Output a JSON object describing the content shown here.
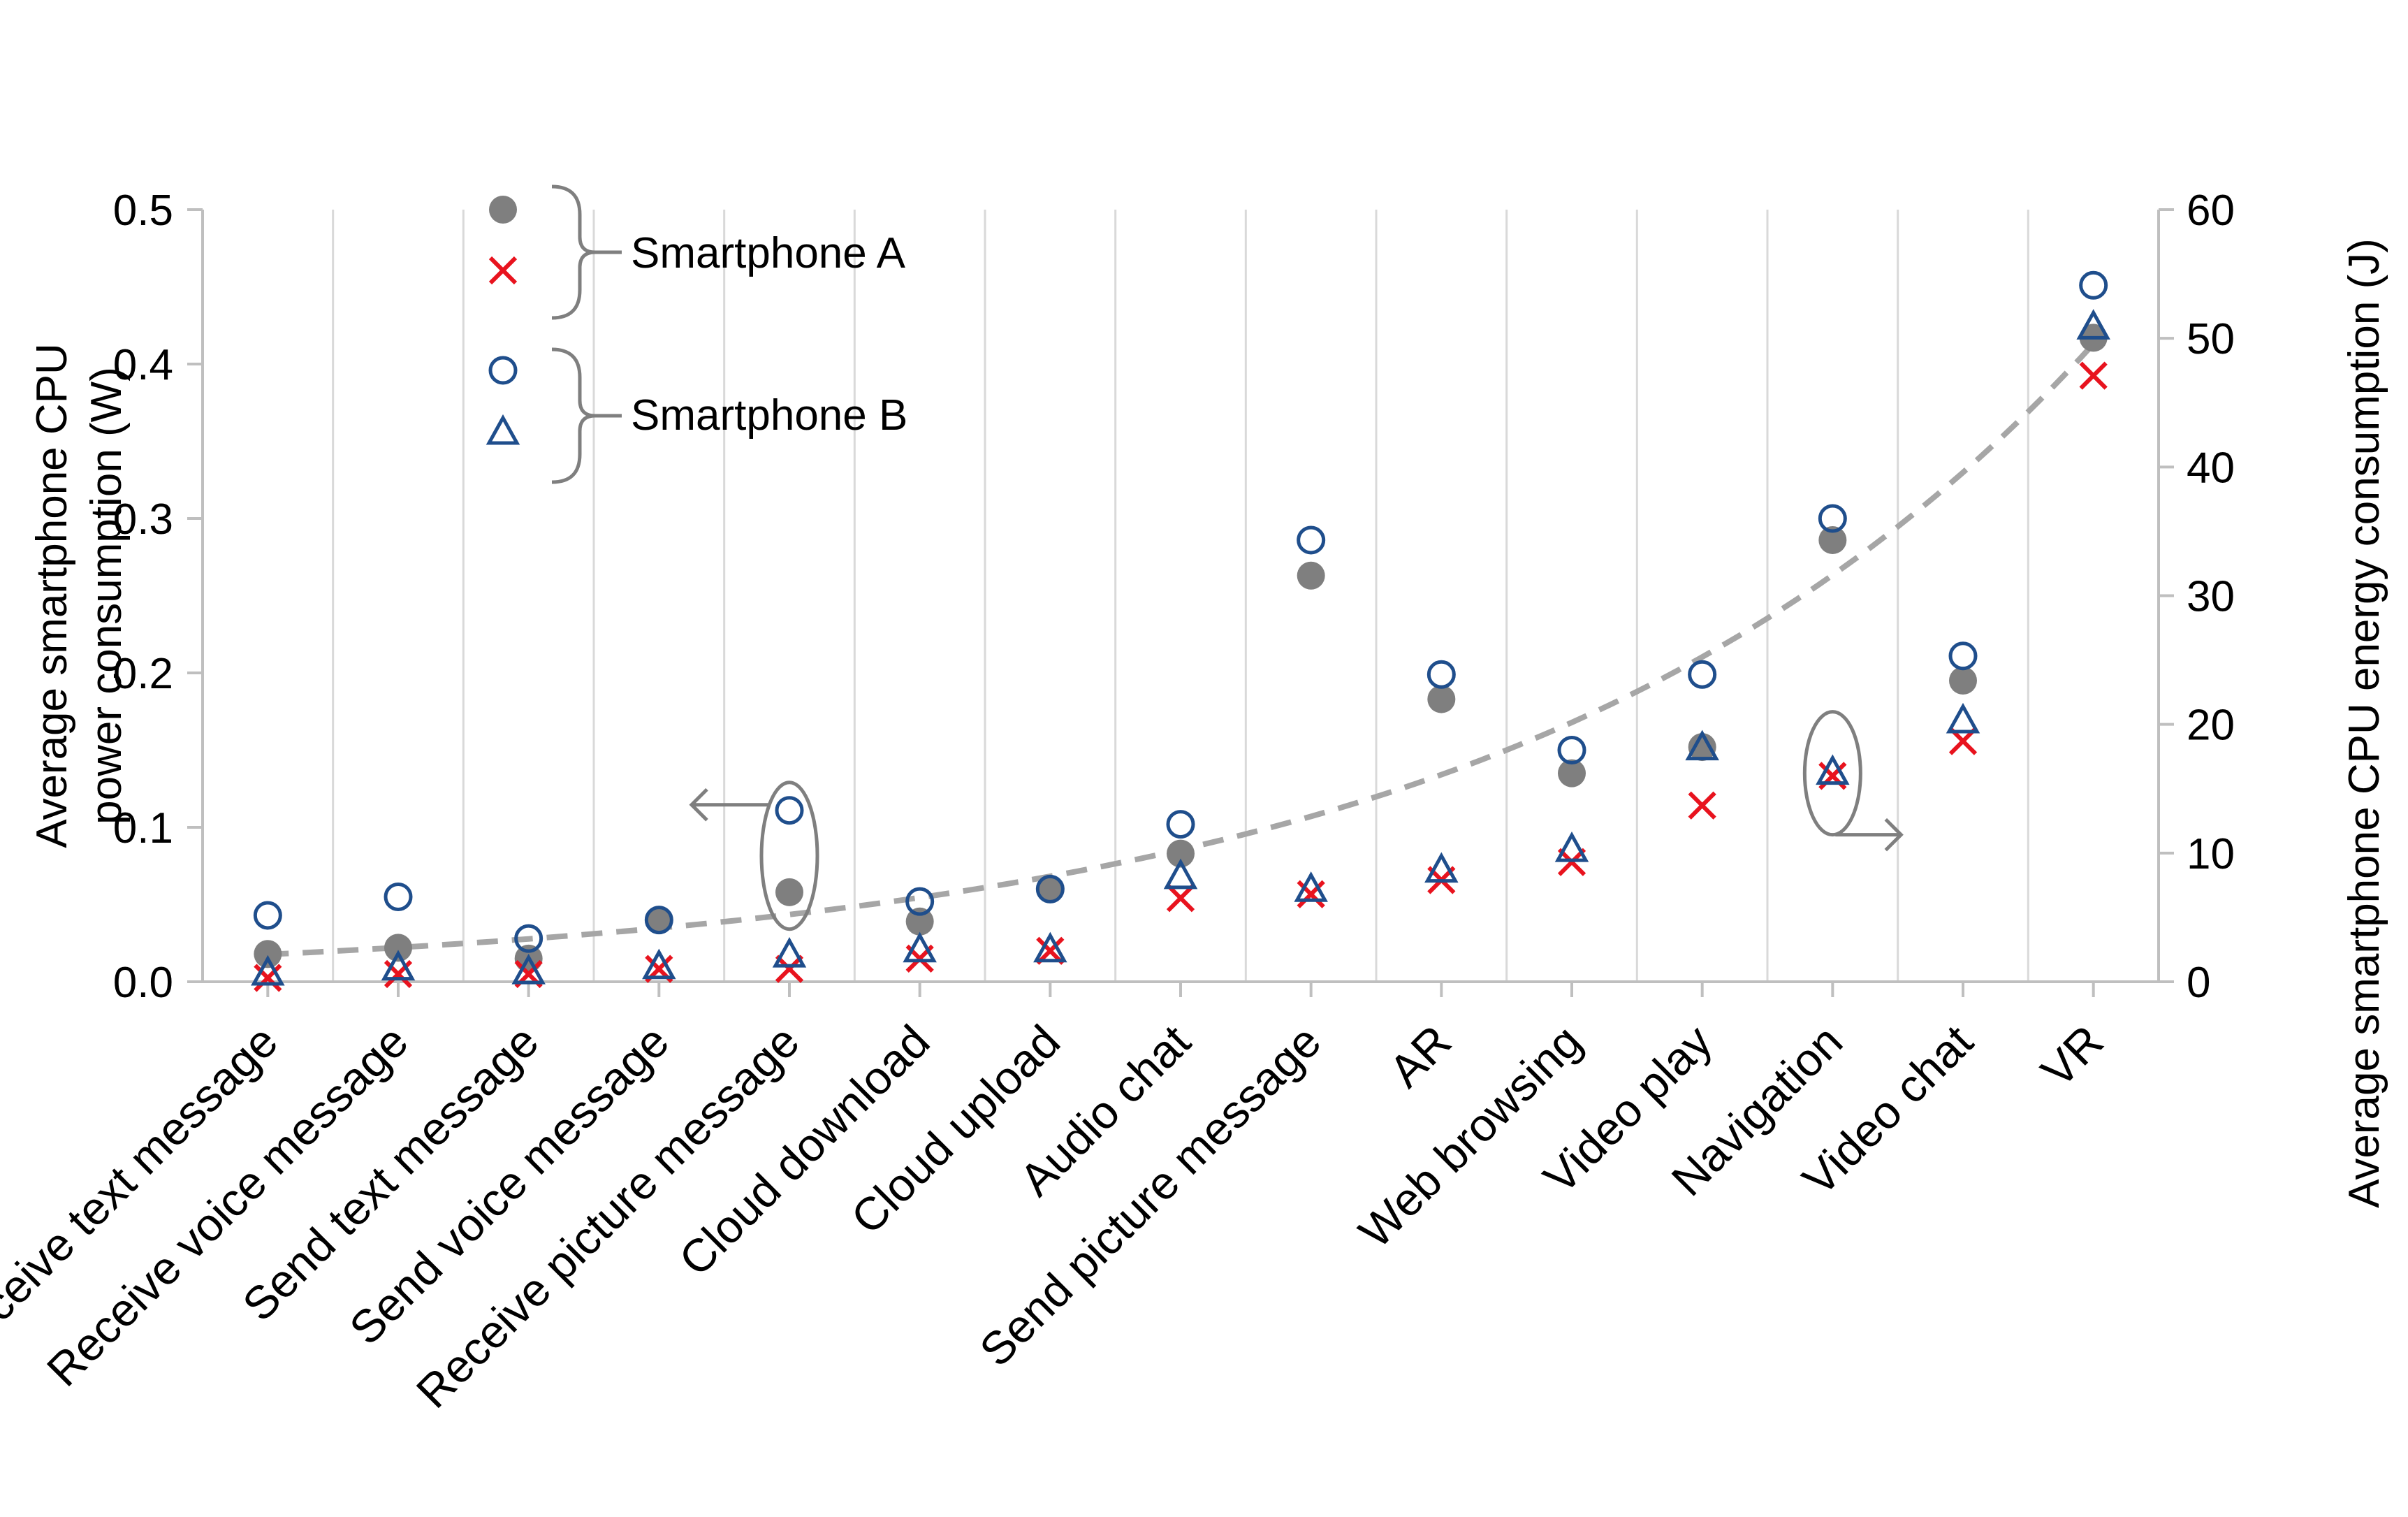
{
  "chart_data": {
    "type": "scatter",
    "categories": [
      "Receive text message",
      "Receive voice message",
      "Send text message",
      "Send voice message",
      "Receive picture message",
      "Cloud download",
      "Cloud upload",
      "Audio chat",
      "Send picture message",
      "AR",
      "Web browsing",
      "Video play",
      "Navigation",
      "Video chat",
      "VR"
    ],
    "y_left": {
      "label_lines": [
        "Average smartphone CPU",
        "power consumption (W)"
      ],
      "range": [
        0,
        0.5
      ],
      "ticks": [
        "0.0",
        "0.1",
        "0.2",
        "0.3",
        "0.4",
        "0.5"
      ]
    },
    "y_right": {
      "label": "Average smartphone CPU energy consumption (J)",
      "range": [
        0,
        60
      ],
      "ticks": [
        "0",
        "10",
        "20",
        "30",
        "40",
        "50",
        "60"
      ]
    },
    "series": [
      {
        "name": "Smartphone A power",
        "device": "Smartphone A",
        "axis": "left",
        "marker": "filled-circle",
        "color": "#7f7f7f",
        "values": [
          0.018,
          0.022,
          0.015,
          0.04,
          0.058,
          0.039,
          0.06,
          0.083,
          0.263,
          0.183,
          0.135,
          0.152,
          0.286,
          0.195,
          0.417
        ]
      },
      {
        "name": "Smartphone A energy",
        "device": "Smartphone A",
        "axis": "right",
        "marker": "x",
        "color": "#e8131e",
        "values": [
          0.3,
          0.6,
          0.6,
          1.0,
          1.0,
          1.8,
          2.4,
          6.5,
          6.8,
          7.9,
          9.3,
          13.7,
          16.0,
          18.7,
          47.1
        ]
      },
      {
        "name": "Smartphone B power",
        "device": "Smartphone B",
        "axis": "left",
        "marker": "open-circle",
        "color": "#1f4e8c",
        "values": [
          0.043,
          0.055,
          0.028,
          0.04,
          0.111,
          0.052,
          0.06,
          0.102,
          0.286,
          0.199,
          0.15,
          0.199,
          0.3,
          0.211,
          0.451
        ]
      },
      {
        "name": "Smartphone B energy",
        "device": "Smartphone B",
        "axis": "right",
        "marker": "open-triangle",
        "color": "#1f4e8c",
        "values": [
          0.6,
          1.0,
          0.7,
          1.1,
          2.0,
          2.4,
          2.4,
          8.1,
          7.1,
          8.6,
          10.2,
          18.1,
          16.2,
          20.2,
          50.8
        ]
      }
    ],
    "trendline": {
      "style": "dashed",
      "type": "exponential",
      "color": "#a6a6a6",
      "a": 0.0177,
      "b": 0.225
    },
    "legend": {
      "position": "top-left",
      "groups": [
        "Smartphone A",
        "Smartphone B"
      ]
    },
    "annotations": [
      {
        "name": "left-axis-indicator",
        "series": "Smartphone B power",
        "category_index": 4,
        "direction": "left"
      },
      {
        "name": "right-axis-indicator",
        "series": "Smartphone B energy",
        "category_index": 12,
        "direction": "right"
      }
    ],
    "grid": "vertical"
  }
}
